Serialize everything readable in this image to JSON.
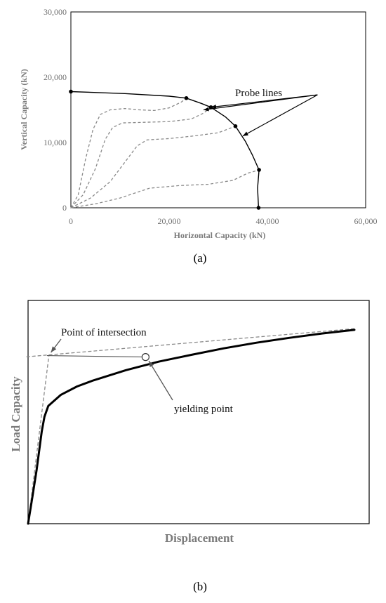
{
  "chart_data": [
    {
      "type": "line",
      "panel_label": "(a)",
      "xlabel": "Horizontal Capacity (kN)",
      "ylabel": "Vertical Capacity (kN)",
      "xlim": [
        0,
        60000
      ],
      "ylim": [
        0,
        30000
      ],
      "x_ticks": [
        0,
        20000,
        40000,
        60000
      ],
      "x_tick_labels": [
        "0",
        "20,000",
        "40,000",
        "60,000"
      ],
      "y_ticks": [
        0,
        10000,
        20000,
        30000
      ],
      "y_tick_labels": [
        "0",
        "10,000",
        "20,000",
        "30,000"
      ],
      "grid": false,
      "envelope": {
        "style": "solid",
        "points": [
          [
            0,
            17800
          ],
          [
            11000,
            17500
          ],
          [
            20000,
            17100
          ],
          [
            23500,
            16800
          ],
          [
            26500,
            16000
          ],
          [
            28500,
            15400
          ],
          [
            31500,
            13900
          ],
          [
            33500,
            12500
          ],
          [
            35500,
            10200
          ],
          [
            37000,
            8000
          ],
          [
            38300,
            5800
          ],
          [
            38000,
            3000
          ],
          [
            38200,
            0
          ]
        ],
        "markers": [
          [
            0,
            17800
          ],
          [
            23500,
            16800
          ],
          [
            28500,
            15400
          ],
          [
            33500,
            12500
          ],
          [
            38300,
            5800
          ],
          [
            38200,
            0
          ]
        ]
      },
      "probe_lines": [
        {
          "style": "dashed",
          "points": [
            [
              0,
              0
            ],
            [
              1500,
              2000
            ],
            [
              3000,
              7500
            ],
            [
              4500,
              12000
            ],
            [
              6000,
              14300
            ],
            [
              8000,
              15000
            ],
            [
              11000,
              15200
            ],
            [
              14000,
              15000
            ],
            [
              17000,
              14900
            ],
            [
              20000,
              15300
            ],
            [
              22500,
              16200
            ],
            [
              23500,
              16800
            ]
          ]
        },
        {
          "style": "dashed",
          "points": [
            [
              0,
              0
            ],
            [
              2500,
              2000
            ],
            [
              5000,
              6000
            ],
            [
              7000,
              10500
            ],
            [
              8500,
              12300
            ],
            [
              10500,
              13000
            ],
            [
              15000,
              13100
            ],
            [
              20000,
              13200
            ],
            [
              24500,
              13600
            ],
            [
              27000,
              14500
            ],
            [
              28500,
              15400
            ]
          ]
        },
        {
          "style": "dashed",
          "points": [
            [
              0,
              0
            ],
            [
              4000,
              1500
            ],
            [
              8000,
              4000
            ],
            [
              11000,
              7000
            ],
            [
              13500,
              9500
            ],
            [
              15500,
              10400
            ],
            [
              20000,
              10600
            ],
            [
              25000,
              11000
            ],
            [
              30000,
              11500
            ],
            [
              33500,
              12500
            ]
          ]
        },
        {
          "style": "dashed",
          "points": [
            [
              0,
              0
            ],
            [
              5000,
              600
            ],
            [
              10000,
              1500
            ],
            [
              16000,
              3000
            ],
            [
              22000,
              3400
            ],
            [
              28000,
              3600
            ],
            [
              33000,
              4200
            ],
            [
              36000,
              5300
            ],
            [
              38300,
              5800
            ]
          ]
        }
      ],
      "annotation": {
        "text": "Probe lines",
        "anchor": [
          50200,
          17300
        ],
        "arrow_targets": [
          [
            27000,
            15000
          ],
          [
            28500,
            15400
          ],
          [
            35000,
            11000
          ]
        ]
      }
    },
    {
      "type": "line",
      "panel_label": "(b)",
      "xlabel": "Displacement",
      "ylabel": "Load Capacity",
      "xlim": [
        0,
        100
      ],
      "ylim": [
        0,
        100
      ],
      "grid": false,
      "series": [
        {
          "style": "solid-thick",
          "points": [
            [
              0,
              0
            ],
            [
              1.2,
              10
            ],
            [
              2.6,
              22
            ],
            [
              4.2,
              38
            ],
            [
              5,
              44
            ],
            [
              6.2,
              48.5
            ],
            [
              10,
              53
            ],
            [
              15,
              56.5
            ],
            [
              20,
              59
            ],
            [
              30,
              63.2
            ],
            [
              40,
              66.7
            ],
            [
              50,
              69.5
            ],
            [
              60,
              72.2
            ],
            [
              70,
              74.5
            ],
            [
              80,
              76.5
            ],
            [
              90,
              78.3
            ],
            [
              100,
              79.8
            ]
          ]
        }
      ],
      "construction_lines": [
        {
          "style": "dashed",
          "points": [
            [
              0,
              0
            ],
            [
              6.4,
              69.5
            ]
          ]
        },
        {
          "style": "dashed",
          "points": [
            [
              -0.5,
              68.7
            ],
            [
              100,
              80.3
            ]
          ]
        },
        {
          "style": "solid-thin",
          "points": [
            [
              5.8,
              69.2
            ],
            [
              36,
              68.6
            ]
          ]
        }
      ],
      "yielding_point": [
        36,
        68.6
      ],
      "annotations": [
        {
          "text": "Point of intersection",
          "anchor": [
            10,
            85
          ],
          "arrow_target": [
            7,
            70.5
          ]
        },
        {
          "text": "yielding point",
          "anchor": [
            44,
            55
          ],
          "arrow_target": [
            37,
            67
          ]
        }
      ]
    }
  ]
}
